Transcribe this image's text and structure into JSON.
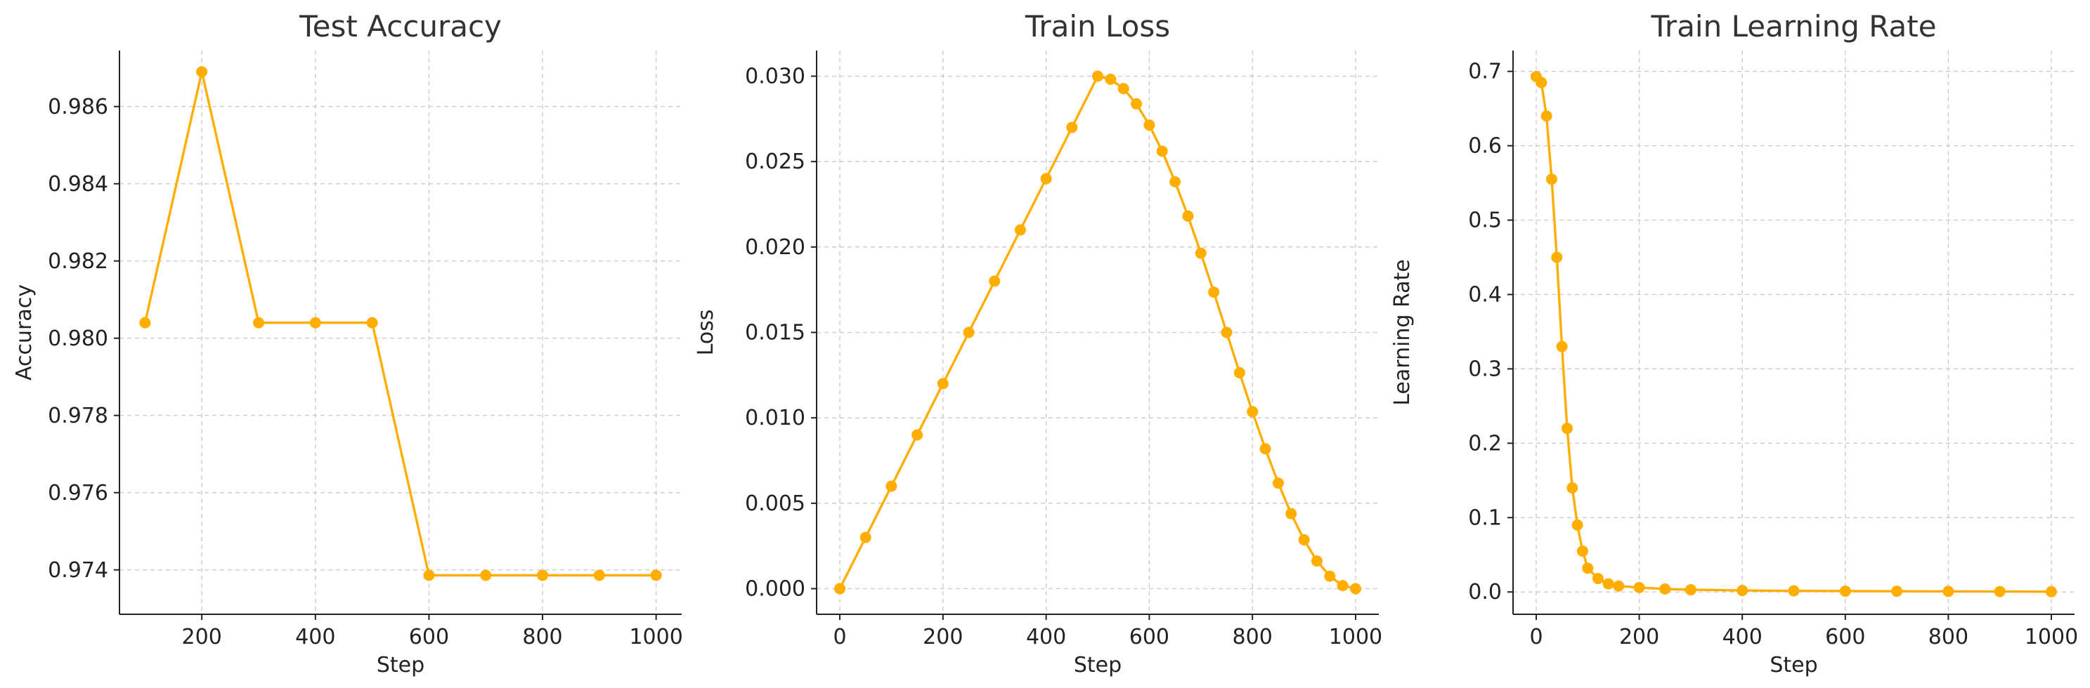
{
  "colors": {
    "series": "#FFAE00",
    "grid": "#c8c8c8",
    "axis": "#222222",
    "title": "#333333"
  },
  "chart_data": [
    {
      "type": "line",
      "title": "Test Accuracy",
      "xlabel": "Step",
      "ylabel": "Accuracy",
      "xlim": [
        55,
        1045
      ],
      "ylim": [
        0.97285,
        0.98745
      ],
      "xticks": [
        200,
        400,
        600,
        800,
        1000
      ],
      "yticks": [
        0.974,
        0.976,
        0.978,
        0.98,
        0.982,
        0.984,
        0.986
      ],
      "ytick_decimals": 3,
      "grid": true,
      "marker": "circle",
      "series": [
        {
          "x": [
            100,
            200,
            300,
            400,
            500,
            600,
            700,
            800,
            900,
            1000
          ],
          "y": [
            0.9804,
            0.9869,
            0.9804,
            0.9804,
            0.9804,
            0.97386,
            0.97386,
            0.97386,
            0.97386,
            0.97386
          ]
        }
      ]
    },
    {
      "type": "line",
      "title": "Train Loss",
      "xlabel": "Step",
      "ylabel": "Loss",
      "xlim": [
        -45,
        1045
      ],
      "ylim": [
        -0.0015,
        0.0315
      ],
      "xticks": [
        0,
        200,
        400,
        600,
        800,
        1000
      ],
      "yticks": [
        0.0,
        0.005,
        0.01,
        0.015,
        0.02,
        0.025,
        0.03
      ],
      "ytick_decimals": 3,
      "grid": true,
      "marker": "circle",
      "series": [
        {
          "x": [
            0,
            50,
            100,
            150,
            200,
            250,
            300,
            350,
            400,
            450,
            500,
            525,
            550,
            575,
            600,
            625,
            650,
            675,
            700,
            725,
            750,
            775,
            800,
            825,
            850,
            875,
            900,
            925,
            950,
            975,
            1000
          ],
          "y": [
            0.0,
            0.003,
            0.006,
            0.009,
            0.012,
            0.015,
            0.018,
            0.021,
            0.024,
            0.027,
            0.03,
            0.02982,
            0.02927,
            0.02838,
            0.02714,
            0.02561,
            0.02382,
            0.02181,
            0.01964,
            0.01736,
            0.015,
            0.01264,
            0.01036,
            0.00819,
            0.00618,
            0.00439,
            0.00286,
            0.00162,
            0.00073,
            0.00018,
            0.0
          ]
        }
      ]
    },
    {
      "type": "line",
      "title": "Train Learning Rate",
      "xlabel": "Step",
      "ylabel": "Learning Rate",
      "xlim": [
        -45,
        1045
      ],
      "ylim": [
        -0.03,
        0.728
      ],
      "xticks": [
        0,
        200,
        400,
        600,
        800,
        1000
      ],
      "yticks": [
        0.0,
        0.1,
        0.2,
        0.3,
        0.4,
        0.5,
        0.6,
        0.7
      ],
      "ytick_decimals": 1,
      "grid": true,
      "marker": "circle",
      "series": [
        {
          "x": [
            0,
            10,
            20,
            30,
            40,
            50,
            60,
            70,
            80,
            90,
            100,
            120,
            140,
            160,
            200,
            250,
            300,
            400,
            500,
            600,
            700,
            800,
            900,
            1000
          ],
          "y": [
            0.693,
            0.685,
            0.64,
            0.555,
            0.45,
            0.33,
            0.22,
            0.14,
            0.09,
            0.055,
            0.032,
            0.018,
            0.011,
            0.008,
            0.006,
            0.004,
            0.003,
            0.002,
            0.0015,
            0.0012,
            0.001,
            0.0008,
            0.0006,
            0.0004
          ]
        }
      ]
    }
  ]
}
